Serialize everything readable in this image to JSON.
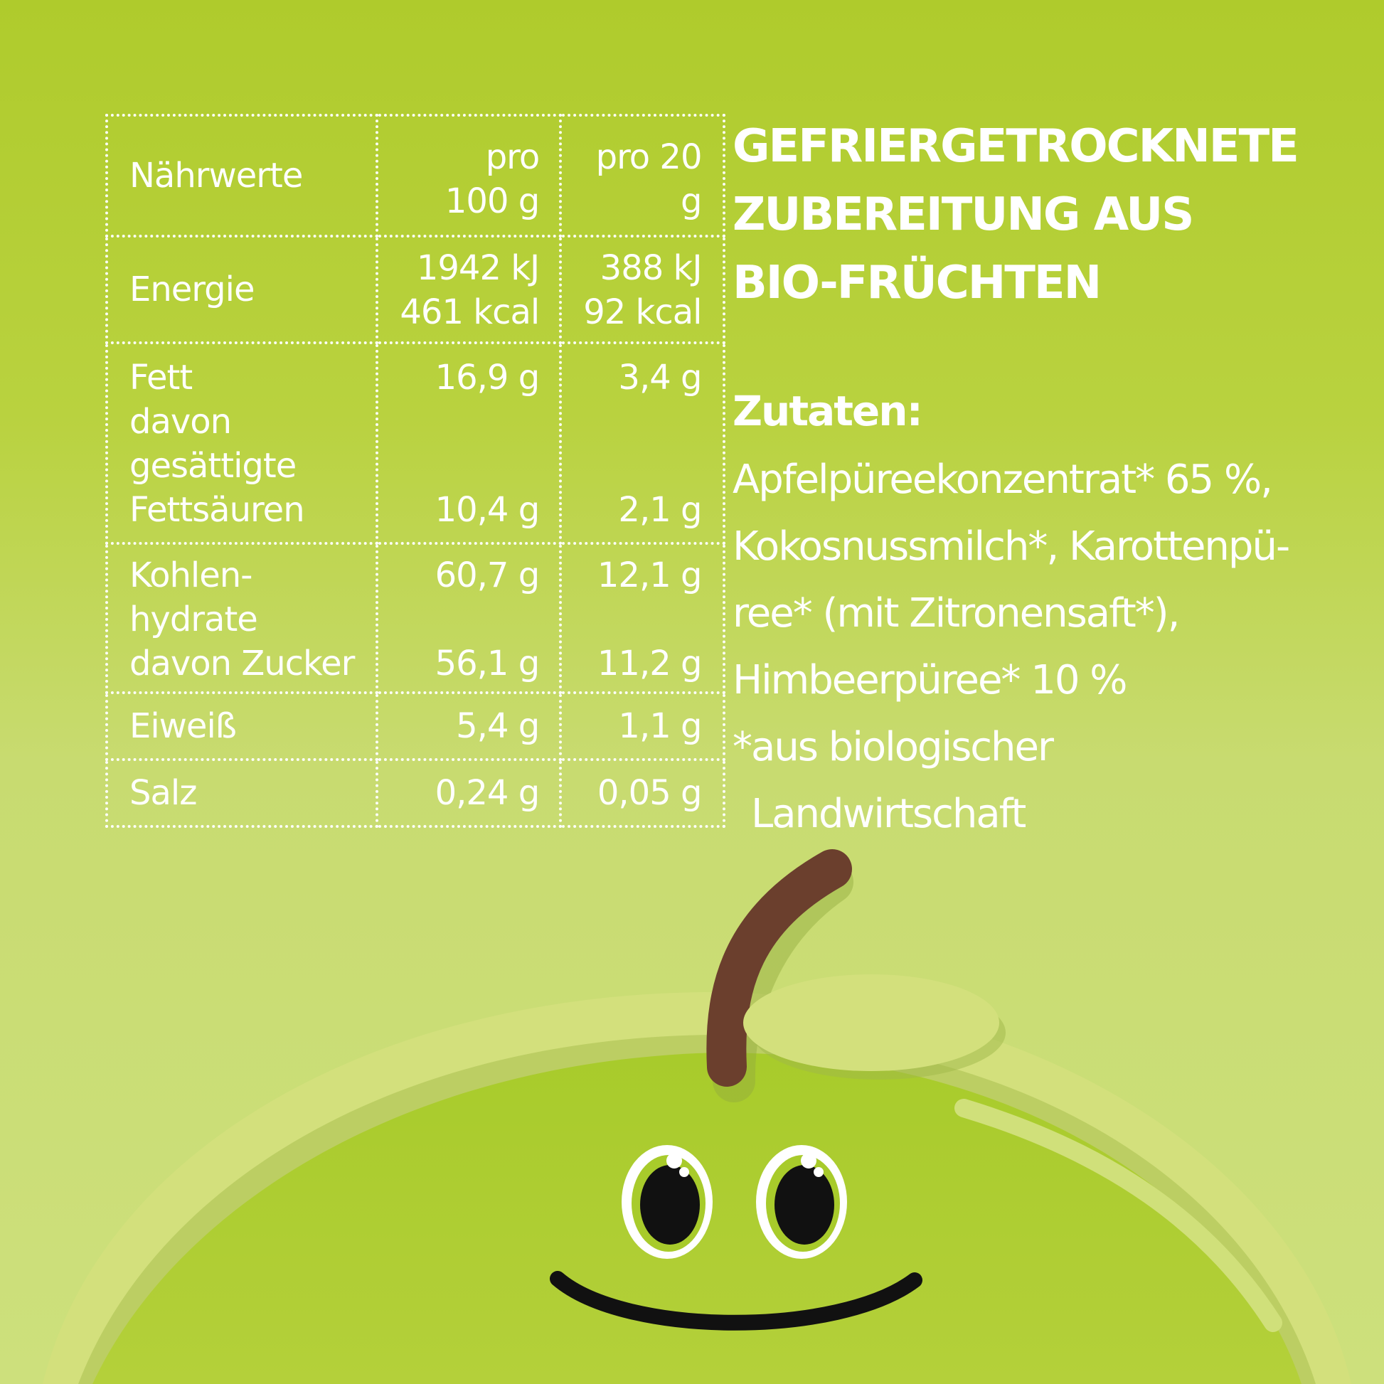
{
  "colors": {
    "background": "#afcb2c",
    "apple_green": "#aacb2a",
    "apple_light": "#d2e07e",
    "stem": "#6b3f2d",
    "text": "#ffffff"
  },
  "nutrition": {
    "header": {
      "label": "Nährwerte",
      "col1": [
        "pro",
        "100 g"
      ],
      "col2": [
        "pro 20",
        "g"
      ]
    },
    "energy": {
      "label": "Energie",
      "col1": [
        "1942 kJ",
        "461 kcal"
      ],
      "col2": [
        "388 kJ",
        "92 kcal"
      ]
    },
    "fat": {
      "label": [
        "Fett",
        "davon",
        "gesättigte",
        "Fettsäuren"
      ],
      "col1": [
        "16,9 g",
        "10,4 g"
      ],
      "col2": [
        "3,4 g",
        "2,1 g"
      ]
    },
    "carbs": {
      "label": [
        "Kohlen-",
        "hydrate",
        "davon Zucker"
      ],
      "col1": [
        "60,7 g",
        "56,1 g"
      ],
      "col2": [
        "12,1 g",
        "11,2 g"
      ]
    },
    "protein": {
      "label": "Eiweiß",
      "col1": "5,4 g",
      "col2": "1,1 g"
    },
    "salt": {
      "label": "Salz",
      "col1": "0,24 g",
      "col2": "0,05 g"
    }
  },
  "product_title": [
    "GEFRIERGETROCKNETE",
    "ZUBEREITUNG AUS",
    "BIO-FRÜCHTEN"
  ],
  "ingredients": {
    "heading": "Zutaten:",
    "lines": [
      "Apfelpüreekonzentrat* 65 %,",
      "Kokosnussmilch*, Karottenpü-",
      "ree* (mit Zitronensaft*),",
      "Himbeerpüree* 10 %",
      "*aus biologischer",
      "Landwirtschaft"
    ]
  },
  "mascot": {
    "icon": "apple-mascot-icon"
  }
}
